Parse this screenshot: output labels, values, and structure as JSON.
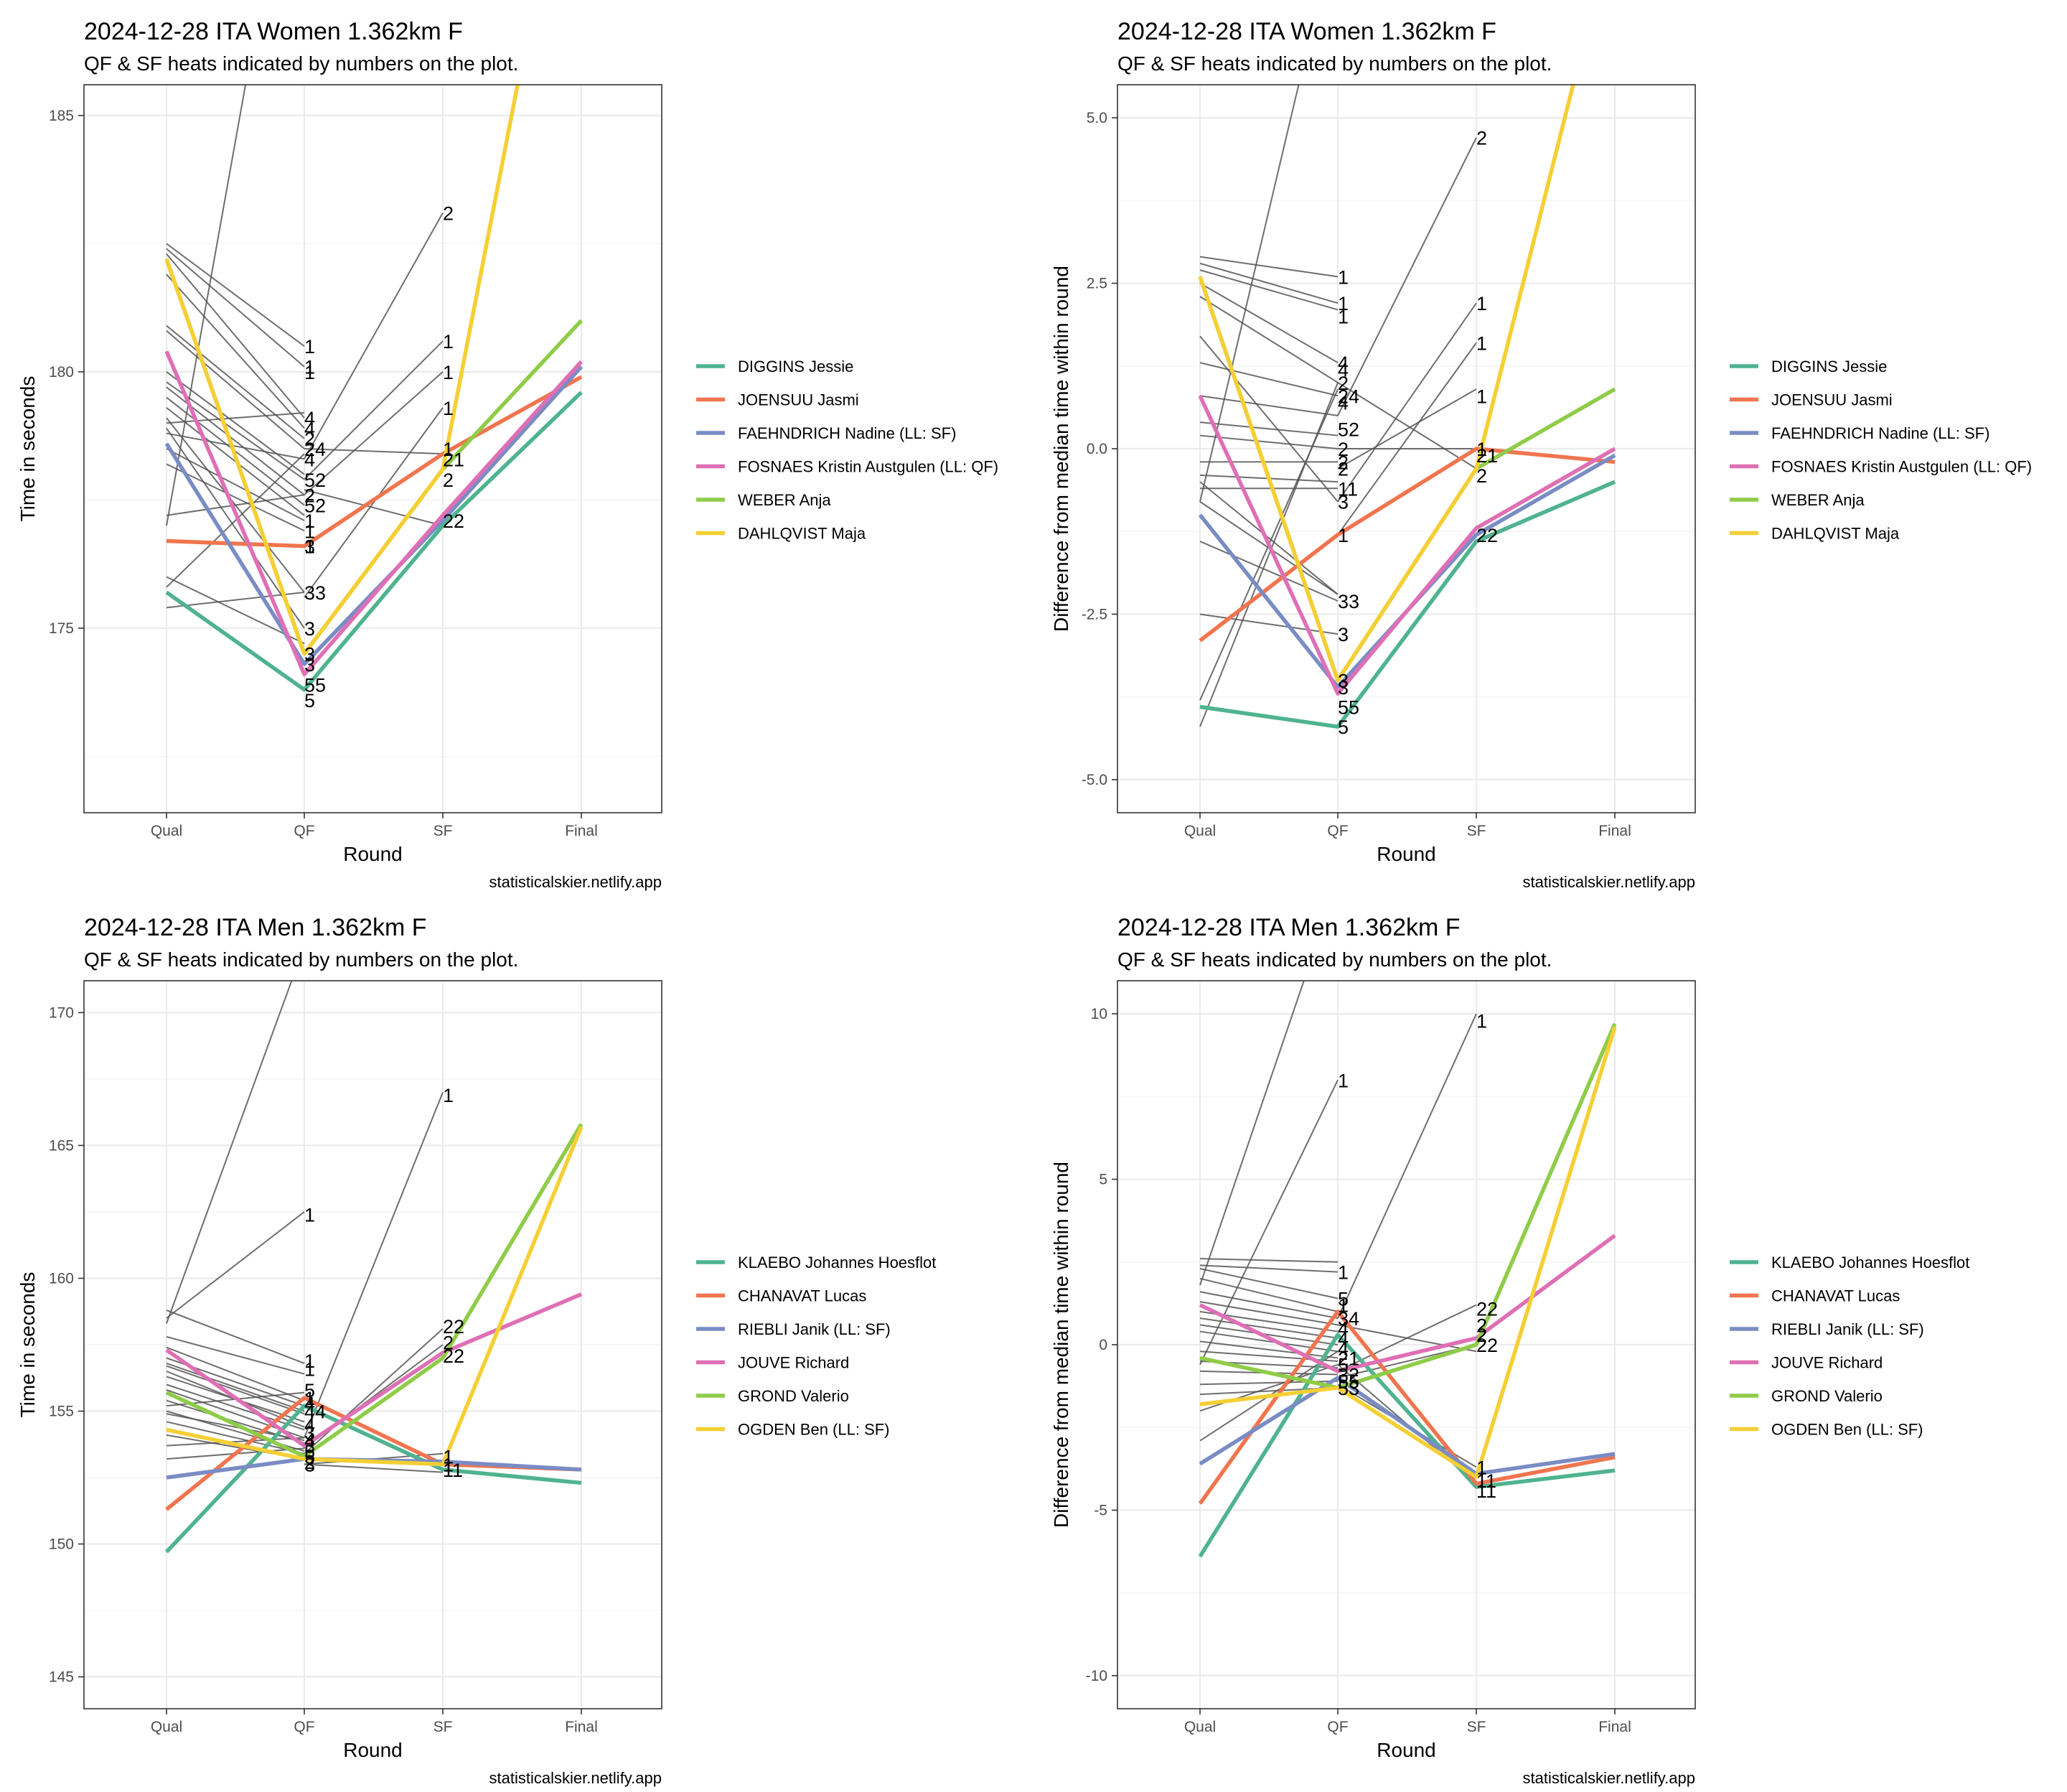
{
  "colors": {
    "grey_line": "#555555",
    "palette": [
      "#4fb38f",
      "#f0754f",
      "#7a8cc4",
      "#df6fb5",
      "#8fcc48",
      "#f5cf34"
    ]
  },
  "caption": "statisticalskier.netlify.app",
  "chart_data": [
    {
      "type": "line",
      "title": "2024-12-28 ITA Women 1.362km F",
      "subtitle": "QF & SF heats indicated by numbers on the plot.",
      "xlabel": "Round",
      "ylabel": "Time in seconds",
      "categories": [
        "Qual",
        "QF",
        "SF",
        "Final"
      ],
      "ylim": [
        171.4,
        185.6
      ],
      "yticks": [
        175,
        180,
        185
      ],
      "grid": true,
      "legend": "right",
      "series": [
        {
          "name": "DIGGINS Jessie",
          "values": [
            175.7,
            173.8,
            177.0,
            179.6
          ]
        },
        {
          "name": "JOENSUU Jasmi",
          "values": [
            176.7,
            176.6,
            178.4,
            179.9
          ]
        },
        {
          "name": "FAEHNDRICH Nadine (LL: SF)",
          "values": [
            178.6,
            174.3,
            177.1,
            180.1
          ]
        },
        {
          "name": "FOSNAES Kristin Austgulen (LL: QF)",
          "values": [
            180.4,
            174.1,
            177.2,
            180.2
          ]
        },
        {
          "name": "WEBER Anja",
          "values": [
            182.2,
            174.5,
            178.1,
            181.0
          ]
        },
        {
          "name": "DAHLQVIST Maja",
          "values": [
            182.2,
            174.5,
            178.1,
            192.0
          ]
        }
      ],
      "background": [
        [
          182.5,
          180.5
        ],
        [
          182.4,
          180.1
        ],
        [
          182.3,
          179.1
        ],
        [
          181.9,
          178.9
        ],
        [
          180.9,
          178.7
        ],
        [
          180.8,
          178.5
        ],
        [
          180.0,
          178.0
        ],
        [
          179.8,
          177.9
        ],
        [
          179.7,
          177.6
        ],
        [
          179.5,
          177.4
        ],
        [
          179.3,
          177.2
        ],
        [
          179.1,
          175.7
        ],
        [
          178.9,
          175.0
        ],
        [
          178.8,
          178.3
        ],
        [
          178.5,
          177.1
        ],
        [
          178.2,
          176.9
        ],
        [
          177.2,
          177.6
        ],
        [
          175.4,
          175.7
        ],
        [
          175.8,
          178.4
        ],
        [
          177.0,
          192.0
        ],
        [
          176.0,
          174.7
        ],
        [
          179.0,
          179.2
        ]
      ],
      "sf_background": [
        [
          178.3,
          183.1
        ],
        [
          177.9,
          180.6
        ],
        [
          177.6,
          180.0
        ],
        [
          178.5,
          178.4
        ],
        [
          177.7,
          177.0
        ],
        [
          175.6,
          179.3
        ]
      ],
      "qf_labels": [
        {
          "t": "1",
          "v": 180.5
        },
        {
          "t": "1",
          "v": 180.1
        },
        {
          "t": "1",
          "v": 180.0
        },
        {
          "t": "4",
          "v": 179.1
        },
        {
          "t": "4",
          "v": 178.9
        },
        {
          "t": "2",
          "v": 178.7
        },
        {
          "t": "24",
          "v": 178.5
        },
        {
          "t": "4",
          "v": 178.3
        },
        {
          "t": "52",
          "v": 177.9
        },
        {
          "t": "2",
          "v": 177.6
        },
        {
          "t": "52",
          "v": 177.4
        },
        {
          "t": "1",
          "v": 177.1
        },
        {
          "t": "1",
          "v": 176.9
        },
        {
          "t": "3",
          "v": 176.6
        },
        {
          "t": "1",
          "v": 176.6
        },
        {
          "t": "33",
          "v": 175.7
        },
        {
          "t": "3",
          "v": 175.0
        },
        {
          "t": "3",
          "v": 174.5
        },
        {
          "t": "3",
          "v": 174.3
        },
        {
          "t": "55",
          "v": 173.9
        },
        {
          "t": "5",
          "v": 173.6
        }
      ],
      "sf_labels": [
        {
          "t": "2",
          "v": 183.1
        },
        {
          "t": "1",
          "v": 180.6
        },
        {
          "t": "1",
          "v": 180.0
        },
        {
          "t": "1",
          "v": 179.3
        },
        {
          "t": "1",
          "v": 178.5
        },
        {
          "t": "21",
          "v": 178.3
        },
        {
          "t": "2",
          "v": 177.9
        },
        {
          "t": "22",
          "v": 177.1
        }
      ]
    },
    {
      "type": "line",
      "title": "2024-12-28 ITA Women 1.362km F",
      "subtitle": "QF & SF heats indicated by numbers on the plot.",
      "xlabel": "Round",
      "ylabel": "Difference from median time within round",
      "categories": [
        "Qual",
        "QF",
        "SF",
        "Final"
      ],
      "ylim": [
        -5.5,
        5.5
      ],
      "yticks": [
        -5.0,
        -2.5,
        0.0,
        2.5,
        5.0
      ],
      "ytick_labels": [
        "-5.0",
        "-2.5",
        "0.0",
        "2.5",
        "5.0"
      ],
      "grid": true,
      "legend": "right",
      "series": [
        {
          "name": "DIGGINS Jessie",
          "values": [
            -3.9,
            -4.2,
            -1.4,
            -0.5
          ]
        },
        {
          "name": "JOENSUU Jasmi",
          "values": [
            -2.9,
            -1.3,
            0.0,
            -0.2
          ]
        },
        {
          "name": "FAEHNDRICH Nadine (LL: SF)",
          "values": [
            -1.0,
            -3.6,
            -1.3,
            -0.1
          ]
        },
        {
          "name": "FOSNAES Kristin Austgulen (LL: QF)",
          "values": [
            0.8,
            -3.7,
            -1.2,
            0.0
          ]
        },
        {
          "name": "WEBER Anja",
          "values": [
            2.6,
            -3.5,
            -0.3,
            0.9
          ]
        },
        {
          "name": "DAHLQVIST Maja",
          "values": [
            2.6,
            -3.5,
            -0.3,
            8.0
          ]
        }
      ],
      "background": [
        [
          2.9,
          2.6
        ],
        [
          2.8,
          2.2
        ],
        [
          2.7,
          2.1
        ],
        [
          2.5,
          1.3
        ],
        [
          2.3,
          1.0
        ],
        [
          1.3,
          0.8
        ],
        [
          0.8,
          0.5
        ],
        [
          0.4,
          0.2
        ],
        [
          0.2,
          0.0
        ],
        [
          -0.2,
          -0.2
        ],
        [
          -0.4,
          -0.5
        ],
        [
          -0.6,
          -0.6
        ],
        [
          -0.8,
          -2.2
        ],
        [
          -1.4,
          -2.3
        ],
        [
          -2.5,
          -2.8
        ],
        [
          -3.8,
          0.9
        ],
        [
          -4.2,
          1.0
        ],
        [
          -0.8,
          8.0
        ],
        [
          1.7,
          -0.8
        ],
        [
          -0.5,
          -2.2
        ]
      ],
      "sf_background": [
        [
          0.5,
          4.7
        ],
        [
          -0.8,
          2.2
        ],
        [
          -1.3,
          1.6
        ],
        [
          0.0,
          0.0
        ],
        [
          -0.3,
          0.9
        ],
        [
          1.0,
          -0.3
        ]
      ],
      "qf_labels": [
        {
          "t": "1",
          "v": 2.6
        },
        {
          "t": "1",
          "v": 2.2
        },
        {
          "t": "1",
          "v": 2.0
        },
        {
          "t": "4",
          "v": 1.3
        },
        {
          "t": "4",
          "v": 1.2
        },
        {
          "t": "2",
          "v": 1.0
        },
        {
          "t": "24",
          "v": 0.8
        },
        {
          "t": "4",
          "v": 0.7
        },
        {
          "t": "52",
          "v": 0.3
        },
        {
          "t": "2",
          "v": 0.0
        },
        {
          "t": "2",
          "v": -0.3
        },
        {
          "t": "2",
          "v": -0.2
        },
        {
          "t": "11",
          "v": -0.6
        },
        {
          "t": "3",
          "v": -0.8
        },
        {
          "t": "1",
          "v": -1.3
        },
        {
          "t": "33",
          "v": -2.3
        },
        {
          "t": "3",
          "v": -2.8
        },
        {
          "t": "3",
          "v": -3.5
        },
        {
          "t": "3",
          "v": -3.6
        },
        {
          "t": "55",
          "v": -3.9
        },
        {
          "t": "5",
          "v": -4.2
        }
      ],
      "sf_labels": [
        {
          "t": "2",
          "v": 4.7
        },
        {
          "t": "1",
          "v": 2.2
        },
        {
          "t": "1",
          "v": 1.6
        },
        {
          "t": "1",
          "v": 0.8
        },
        {
          "t": "1",
          "v": 0.0
        },
        {
          "t": "21",
          "v": -0.1
        },
        {
          "t": "2",
          "v": -0.4
        },
        {
          "t": "22",
          "v": -1.3
        }
      ]
    },
    {
      "type": "line",
      "title": "2024-12-28 ITA Men 1.362km F",
      "subtitle": "QF & SF heats indicated by numbers on the plot.",
      "xlabel": "Round",
      "ylabel": "Time in seconds",
      "categories": [
        "Qual",
        "QF",
        "SF",
        "Final"
      ],
      "ylim": [
        143.8,
        171.2
      ],
      "yticks": [
        145,
        150,
        155,
        160,
        165,
        170
      ],
      "grid": true,
      "legend": "right",
      "series": [
        {
          "name": "KLAEBO Johannes Hoesflot",
          "values": [
            149.7,
            155.2,
            152.8,
            152.3
          ]
        },
        {
          "name": "CHANAVAT Lucas",
          "values": [
            151.3,
            155.5,
            153.0,
            152.8
          ]
        },
        {
          "name": "RIEBLI Janik (LL: SF)",
          "values": [
            152.5,
            153.2,
            153.1,
            152.8
          ]
        },
        {
          "name": "JOUVE Richard",
          "values": [
            157.3,
            153.7,
            157.2,
            159.4
          ]
        },
        {
          "name": "GROND Valerio",
          "values": [
            155.7,
            153.3,
            157.0,
            165.8
          ]
        },
        {
          "name": "OGDEN Ben (LL: SF)",
          "values": [
            154.3,
            153.2,
            153.0,
            165.7
          ]
        }
      ],
      "background": [
        [
          158.8,
          156.8
        ],
        [
          158.5,
          162.5
        ],
        [
          158.3,
          172.5
        ],
        [
          157.8,
          156.4
        ],
        [
          157.4,
          155.4
        ],
        [
          157.0,
          155.2
        ],
        [
          156.7,
          154.9
        ],
        [
          156.3,
          154.6
        ],
        [
          156.0,
          154.3
        ],
        [
          155.8,
          154.0
        ],
        [
          155.4,
          153.8
        ],
        [
          155.0,
          153.5
        ],
        [
          154.6,
          153.4
        ],
        [
          154.1,
          153.2
        ],
        [
          153.2,
          153.6
        ],
        [
          156.5,
          154.4
        ],
        [
          155.2,
          155.7
        ],
        [
          154.9,
          153.9
        ],
        [
          153.7,
          154.0
        ],
        [
          156.8,
          155.0
        ]
      ],
      "sf_background": [
        [
          154.0,
          167.0
        ],
        [
          153.4,
          158.1
        ],
        [
          153.6,
          157.5
        ],
        [
          153.0,
          153.4
        ],
        [
          153.2,
          153.0
        ],
        [
          153.0,
          152.7
        ]
      ],
      "qf_labels": [
        {
          "t": "1",
          "v": 162.4
        },
        {
          "t": "1",
          "v": 156.9
        },
        {
          "t": "1",
          "v": 156.6
        },
        {
          "t": "5",
          "v": 155.8
        },
        {
          "t": "1",
          "v": 155.5
        },
        {
          "t": "4",
          "v": 155.3
        },
        {
          "t": "44",
          "v": 155.0
        },
        {
          "t": "4",
          "v": 154.5
        },
        {
          "t": "3",
          "v": 154.2
        },
        {
          "t": "4",
          "v": 153.9
        },
        {
          "t": "3",
          "v": 153.7
        },
        {
          "t": "5",
          "v": 153.5
        },
        {
          "t": "5",
          "v": 153.3
        },
        {
          "t": "2",
          "v": 153.1
        },
        {
          "t": "3",
          "v": 153.0
        }
      ],
      "sf_labels": [
        {
          "t": "1",
          "v": 166.9
        },
        {
          "t": "22",
          "v": 158.2
        },
        {
          "t": "2",
          "v": 157.6
        },
        {
          "t": "22",
          "v": 157.1
        },
        {
          "t": "1",
          "v": 153.3
        },
        {
          "t": "1",
          "v": 153.0
        },
        {
          "t": "11",
          "v": 152.8
        }
      ]
    },
    {
      "type": "line",
      "title": "2024-12-28 ITA Men 1.362km F",
      "subtitle": "QF & SF heats indicated by numbers on the plot.",
      "xlabel": "Round",
      "ylabel": "Difference from median time within round",
      "categories": [
        "Qual",
        "QF",
        "SF",
        "Final"
      ],
      "ylim": [
        -11.0,
        11.0
      ],
      "yticks": [
        -10,
        -5,
        0,
        5,
        10
      ],
      "grid": true,
      "legend": "right",
      "series": [
        {
          "name": "KLAEBO Johannes Hoesflot",
          "values": [
            -6.4,
            0.3,
            -4.3,
            -3.8
          ]
        },
        {
          "name": "CHANAVAT Lucas",
          "values": [
            -4.8,
            1.0,
            -4.2,
            -3.4
          ]
        },
        {
          "name": "RIEBLI Janik (LL: SF)",
          "values": [
            -3.6,
            -1.0,
            -3.9,
            -3.3
          ]
        },
        {
          "name": "JOUVE Richard",
          "values": [
            1.2,
            -0.8,
            0.2,
            3.3
          ]
        },
        {
          "name": "GROND Valerio",
          "values": [
            -0.4,
            -1.3,
            0.0,
            9.7
          ]
        },
        {
          "name": "OGDEN Ben (LL: SF)",
          "values": [
            -1.8,
            -1.3,
            -4.0,
            9.6
          ]
        }
      ],
      "background": [
        [
          2.6,
          2.5
        ],
        [
          2.4,
          2.2
        ],
        [
          2.3,
          1.4
        ],
        [
          2.0,
          1.0
        ],
        [
          1.6,
          0.8
        ],
        [
          1.3,
          0.6
        ],
        [
          1.0,
          0.4
        ],
        [
          0.8,
          0.2
        ],
        [
          0.6,
          0.0
        ],
        [
          0.4,
          -0.2
        ],
        [
          0.1,
          -0.4
        ],
        [
          -0.2,
          -0.5
        ],
        [
          -0.5,
          -0.7
        ],
        [
          -0.8,
          -0.9
        ],
        [
          -1.2,
          -1.1
        ],
        [
          -1.5,
          -1.3
        ],
        [
          -2.0,
          -0.6
        ],
        [
          -2.9,
          -0.2
        ],
        [
          -0.6,
          8.0
        ],
        [
          1.8,
          14.0
        ]
      ],
      "sf_background": [
        [
          0.8,
          10.0
        ],
        [
          -0.8,
          1.2
        ],
        [
          -1.0,
          0.0
        ],
        [
          -1.2,
          -3.7
        ],
        [
          -0.6,
          -4.2
        ],
        [
          0.6,
          -0.2
        ]
      ],
      "qf_labels": [
        {
          "t": "1",
          "v": 8.0
        },
        {
          "t": "1",
          "v": 2.2
        },
        {
          "t": "5",
          "v": 1.4
        },
        {
          "t": "1",
          "v": 1.2
        },
        {
          "t": "34",
          "v": 0.8
        },
        {
          "t": "4",
          "v": 0.5
        },
        {
          "t": "4",
          "v": 0.2
        },
        {
          "t": "4",
          "v": -0.1
        },
        {
          "t": "21",
          "v": -0.4
        },
        {
          "t": "5",
          "v": -0.6
        },
        {
          "t": "32",
          "v": -0.9
        },
        {
          "t": "55",
          "v": -1.1
        },
        {
          "t": "53",
          "v": -1.3
        }
      ],
      "sf_labels": [
        {
          "t": "1",
          "v": 9.8
        },
        {
          "t": "22",
          "v": 1.1
        },
        {
          "t": "2",
          "v": 0.6
        },
        {
          "t": "2",
          "v": 0.3
        },
        {
          "t": "22",
          "v": 0.0
        },
        {
          "t": "1",
          "v": -3.7
        },
        {
          "t": "11",
          "v": -4.1
        },
        {
          "t": "11",
          "v": -4.4
        }
      ]
    }
  ]
}
